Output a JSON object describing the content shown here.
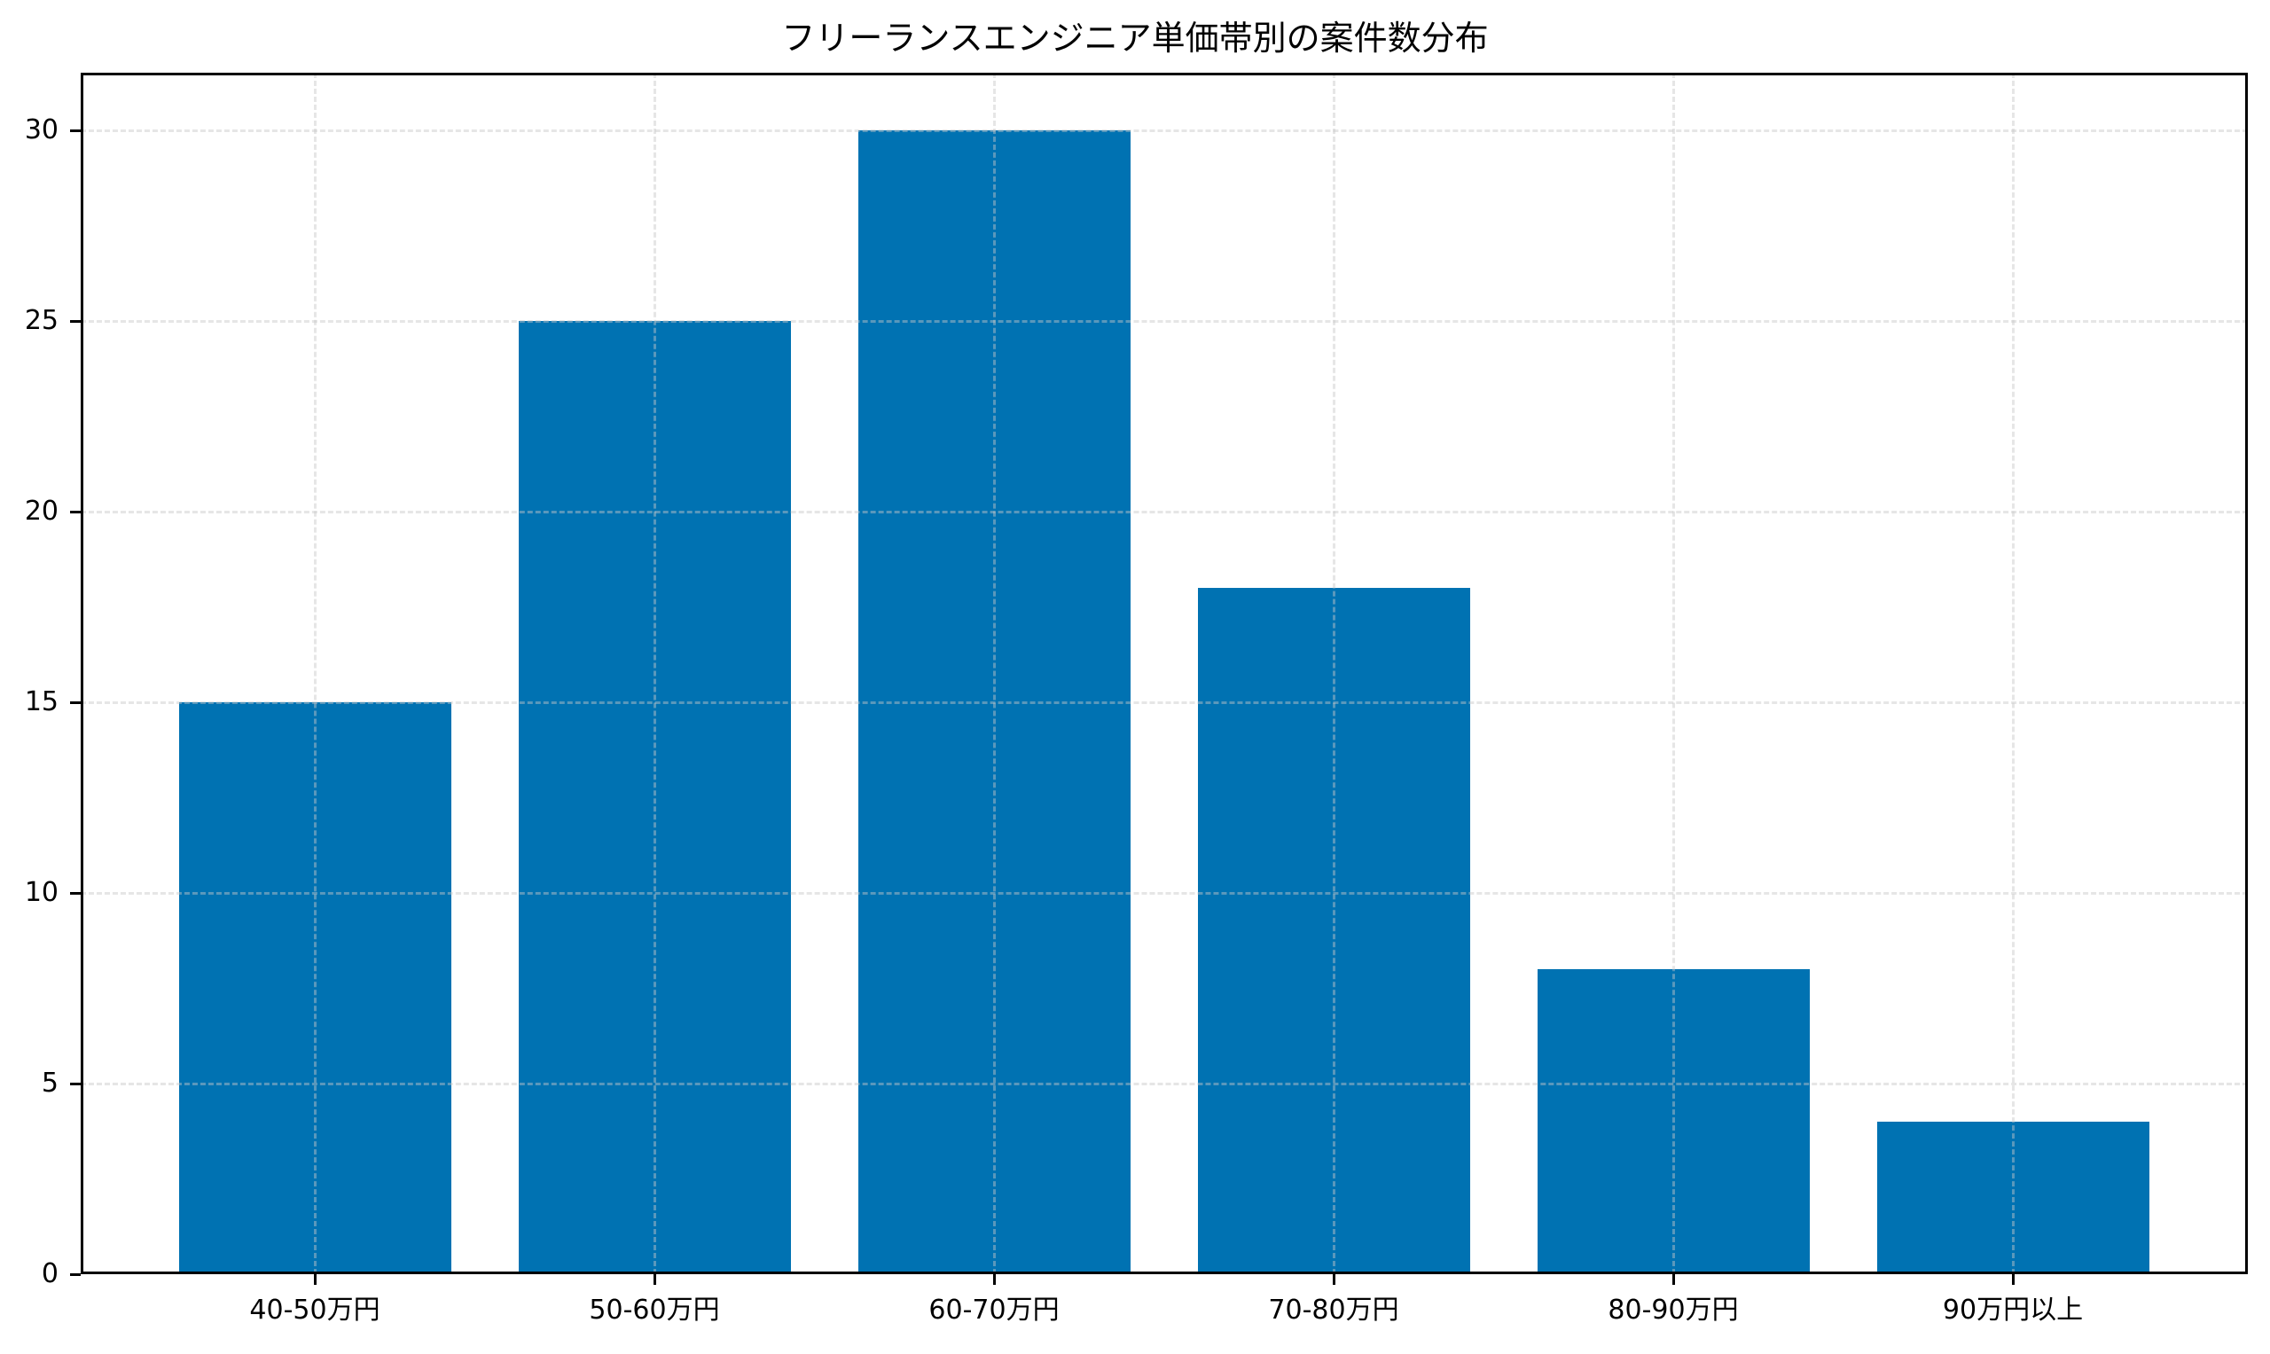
{
  "chart_data": {
    "type": "bar",
    "title": "フリーランスエンジニア単価帯別の案件数分布",
    "xlabel": "",
    "ylabel": "",
    "categories": [
      "40-50万円",
      "50-60万円",
      "60-70万円",
      "70-80万円",
      "80-90万円",
      "90万円以上"
    ],
    "values": [
      15,
      25,
      30,
      18,
      8,
      4
    ],
    "ylim": [
      0,
      31.5
    ],
    "yticks": [
      0,
      5,
      10,
      15,
      20,
      25,
      30
    ],
    "ytick_labels": [
      "0",
      "5",
      "10",
      "15",
      "20",
      "25",
      "30"
    ],
    "grid": true,
    "grid_style": "dashed",
    "legend": null,
    "bar_color": "#0072B2"
  }
}
